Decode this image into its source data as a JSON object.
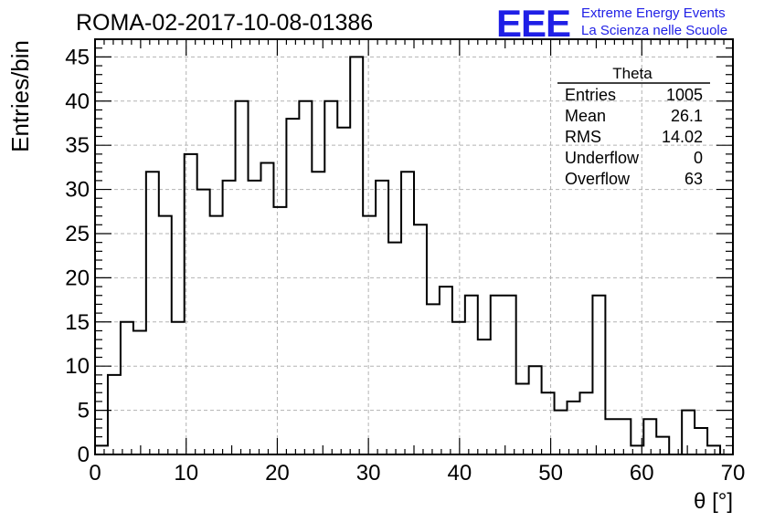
{
  "chart_data": {
    "type": "bar",
    "title": "ROMA-02-2017-10-08-01386",
    "xlabel": "θ [°]",
    "ylabel": "Entries/bin",
    "xlim": [
      0,
      70
    ],
    "ylim": [
      0,
      47
    ],
    "bin_width": 1.4,
    "x_ticks": [
      0,
      10,
      20,
      30,
      40,
      50,
      60,
      70
    ],
    "y_ticks": [
      0,
      5,
      10,
      15,
      20,
      25,
      30,
      35,
      40,
      45
    ],
    "values": [
      1,
      9,
      15,
      14,
      32,
      27,
      15,
      34,
      30,
      27,
      31,
      40,
      31,
      33,
      28,
      38,
      40,
      32,
      40,
      37,
      45,
      27,
      31,
      24,
      32,
      26,
      17,
      19,
      15,
      18,
      13,
      18,
      18,
      8,
      10,
      7,
      5,
      6,
      7,
      18,
      4,
      4,
      1,
      4,
      2,
      0,
      5,
      3,
      1,
      0
    ],
    "grid": true,
    "histogram_color": "#000000",
    "stats_box": {
      "title": "Theta",
      "rows": [
        {
          "label": "Entries",
          "value": "1005"
        },
        {
          "label": "Mean",
          "value": "26.1"
        },
        {
          "label": "RMS",
          "value": "14.02"
        },
        {
          "label": "Underflow",
          "value": "0"
        },
        {
          "label": "Overflow",
          "value": "63"
        }
      ]
    }
  },
  "logo": {
    "mark": "EEE",
    "line1": "Extreme Energy Events",
    "line2": "La Scienza nelle Scuole",
    "color": "#1f1fe6"
  }
}
